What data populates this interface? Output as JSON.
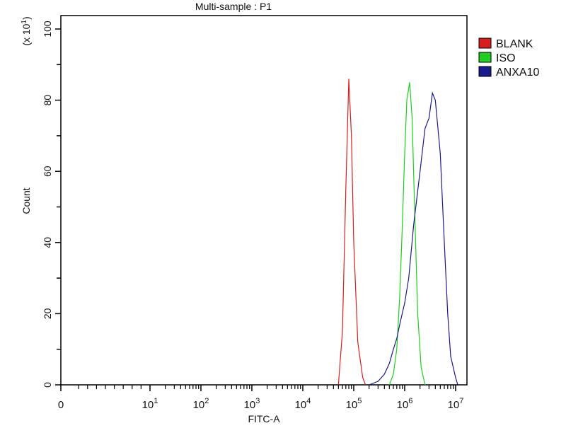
{
  "chart_data": {
    "type": "line",
    "title": "Multi-sample : P1",
    "xlabel": "FITC-A",
    "ylabel": "Count",
    "y_multiplier": "(x 10",
    "y_multiplier_exp": "1",
    "y_multiplier_close": ")",
    "x_scale": "log",
    "xlim": [
      0,
      15000000
    ],
    "ylim": [
      0,
      103
    ],
    "x_ticks": [
      {
        "base": "0",
        "exp": ""
      },
      {
        "base": "10",
        "exp": "1"
      },
      {
        "base": "10",
        "exp": "2"
      },
      {
        "base": "10",
        "exp": "3"
      },
      {
        "base": "10",
        "exp": "4"
      },
      {
        "base": "10",
        "exp": "5"
      },
      {
        "base": "10",
        "exp": "6"
      },
      {
        "base": "10",
        "exp": "7"
      }
    ],
    "y_ticks": [
      "0",
      "20",
      "40",
      "60",
      "80",
      "100"
    ],
    "grid": false,
    "legend_position": "right",
    "series": [
      {
        "name": "BLANK",
        "color": "#d62020",
        "points": [
          [
            50000,
            0
          ],
          [
            60000,
            15
          ],
          [
            70000,
            55
          ],
          [
            80000,
            86
          ],
          [
            90000,
            70
          ],
          [
            100000,
            40
          ],
          [
            120000,
            12
          ],
          [
            150000,
            2
          ],
          [
            170000,
            0
          ]
        ]
      },
      {
        "name": "ISO",
        "color": "#22cc22",
        "points": [
          [
            500000,
            0
          ],
          [
            600000,
            3
          ],
          [
            700000,
            10
          ],
          [
            800000,
            25
          ],
          [
            900000,
            45
          ],
          [
            1000000,
            65
          ],
          [
            1100000,
            80
          ],
          [
            1250000,
            85
          ],
          [
            1400000,
            75
          ],
          [
            1600000,
            45
          ],
          [
            1800000,
            20
          ],
          [
            2100000,
            5
          ],
          [
            2500000,
            0
          ]
        ]
      },
      {
        "name": "ANXA10",
        "color": "#1a1a8c",
        "points": [
          [
            200000,
            0
          ],
          [
            300000,
            1
          ],
          [
            400000,
            3
          ],
          [
            500000,
            6
          ],
          [
            600000,
            10
          ],
          [
            700000,
            13
          ],
          [
            800000,
            17
          ],
          [
            1000000,
            23
          ],
          [
            1200000,
            30
          ],
          [
            1500000,
            45
          ],
          [
            2000000,
            60
          ],
          [
            2500000,
            72
          ],
          [
            3000000,
            75
          ],
          [
            3500000,
            82
          ],
          [
            4000000,
            80
          ],
          [
            5000000,
            65
          ],
          [
            6000000,
            40
          ],
          [
            7000000,
            20
          ],
          [
            8000000,
            8
          ],
          [
            10000000,
            2
          ],
          [
            11000000,
            0
          ]
        ]
      }
    ]
  }
}
